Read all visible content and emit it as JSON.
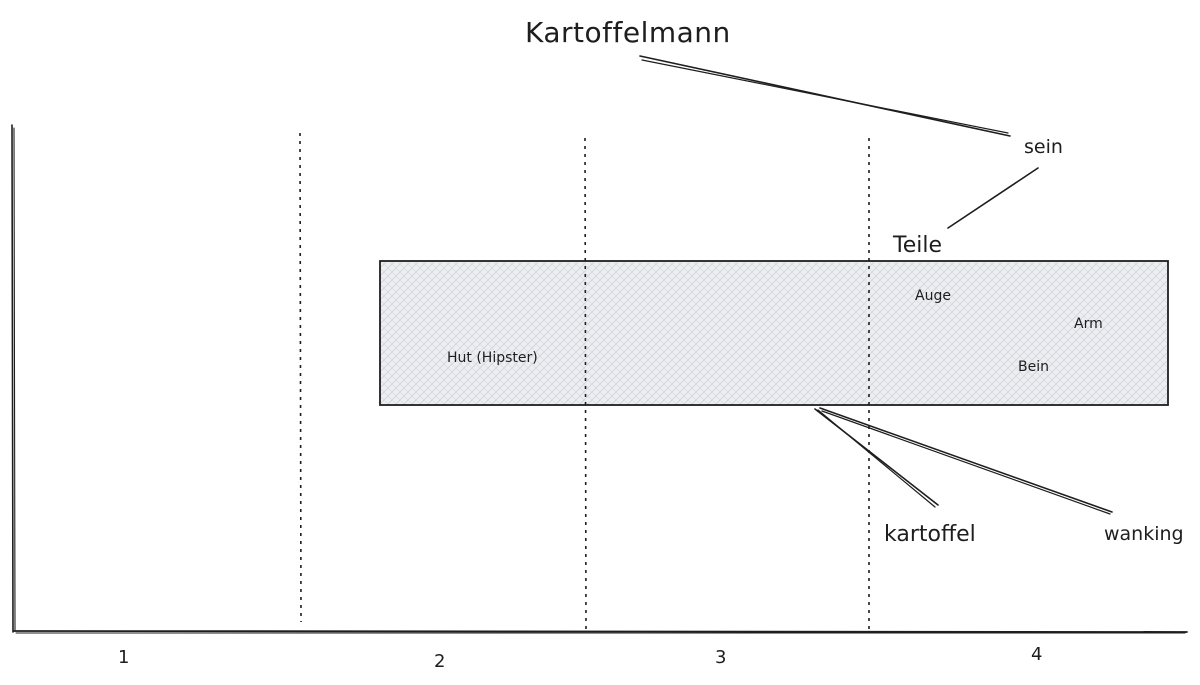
{
  "title": "Kartoffelmann",
  "relation_top": "sein",
  "parts_label": "Teile",
  "box": {
    "items": [
      "Hut (Hipster)",
      "Auge",
      "Arm",
      "Bein"
    ]
  },
  "bottom_labels": [
    "kartoffel",
    "wanking"
  ],
  "axis": {
    "ticks": [
      "1",
      "2",
      "3",
      "4"
    ]
  },
  "colors": {
    "ink": "#1e1e1e",
    "box_fill": "#e3e5e9"
  }
}
